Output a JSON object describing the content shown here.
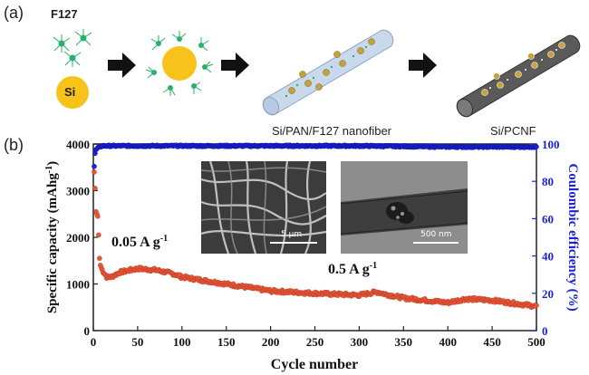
{
  "panel_a": {
    "label": "(a)",
    "f127_label": "F127",
    "si_label": "Si",
    "fiber1_caption": "Si/PAN/F127 nanofiber",
    "fiber2_caption": "Si/PCNF"
  },
  "panel_b": {
    "label": "(b)",
    "annotation_low_rate": "0.05 A g",
    "annotation_low_rate_sup": "-1",
    "annotation_high_rate": "0.5 A g",
    "annotation_high_rate_sup": "-1",
    "inset_sem_scale": "5 μm",
    "inset_tem_scale": "500 nm"
  },
  "colors": {
    "capacity": "#e8563a",
    "efficiency": "#1a22d8",
    "si_core": "#f7c31a",
    "fiber_blue": "#c9d9ec",
    "fiber_gray": "#5a5a5a",
    "f127_green": "#27b36a"
  },
  "chart_data": {
    "type": "scatter",
    "xlabel": "Cycle number",
    "ylabel_left": "Specific capacity (mAhg",
    "ylabel_left_sup": "-1",
    "ylabel_left_close": ")",
    "ylabel_right": "Coulombic efficiency (%)",
    "xlim": [
      0,
      500
    ],
    "ylim_left": [
      0,
      4000
    ],
    "ylim_right": [
      0,
      100
    ],
    "x_ticks": [
      0,
      50,
      100,
      150,
      200,
      250,
      300,
      350,
      400,
      450,
      500
    ],
    "y_left_ticks": [
      0,
      1000,
      2000,
      3000,
      4000
    ],
    "y_right_ticks": [
      0,
      20,
      40,
      60,
      80,
      100
    ],
    "series": [
      {
        "axis": "left",
        "anchors": [
          [
            1,
            3400
          ],
          [
            2,
            3050
          ],
          [
            3,
            2550
          ],
          [
            4,
            2500
          ],
          [
            5,
            2450
          ],
          [
            6,
            2050
          ],
          [
            7,
            1550
          ],
          [
            8,
            1400
          ],
          [
            10,
            1300
          ],
          [
            15,
            1150
          ],
          [
            20,
            1150
          ],
          [
            30,
            1250
          ],
          [
            50,
            1330
          ],
          [
            70,
            1300
          ],
          [
            90,
            1220
          ],
          [
            100,
            1150
          ],
          [
            150,
            1000
          ],
          [
            200,
            850
          ],
          [
            250,
            800
          ],
          [
            300,
            760
          ],
          [
            320,
            830
          ],
          [
            330,
            780
          ],
          [
            350,
            700
          ],
          [
            400,
            600
          ],
          [
            420,
            680
          ],
          [
            450,
            650
          ],
          [
            500,
            520
          ]
        ]
      },
      {
        "axis": "right",
        "anchors": [
          [
            1,
            88
          ],
          [
            2,
            95
          ],
          [
            3,
            97
          ],
          [
            5,
            98
          ],
          [
            10,
            99
          ],
          [
            20,
            99
          ],
          [
            100,
            99
          ],
          [
            200,
            99
          ],
          [
            300,
            99
          ],
          [
            400,
            98.5
          ],
          [
            500,
            98.5
          ]
        ]
      }
    ]
  }
}
